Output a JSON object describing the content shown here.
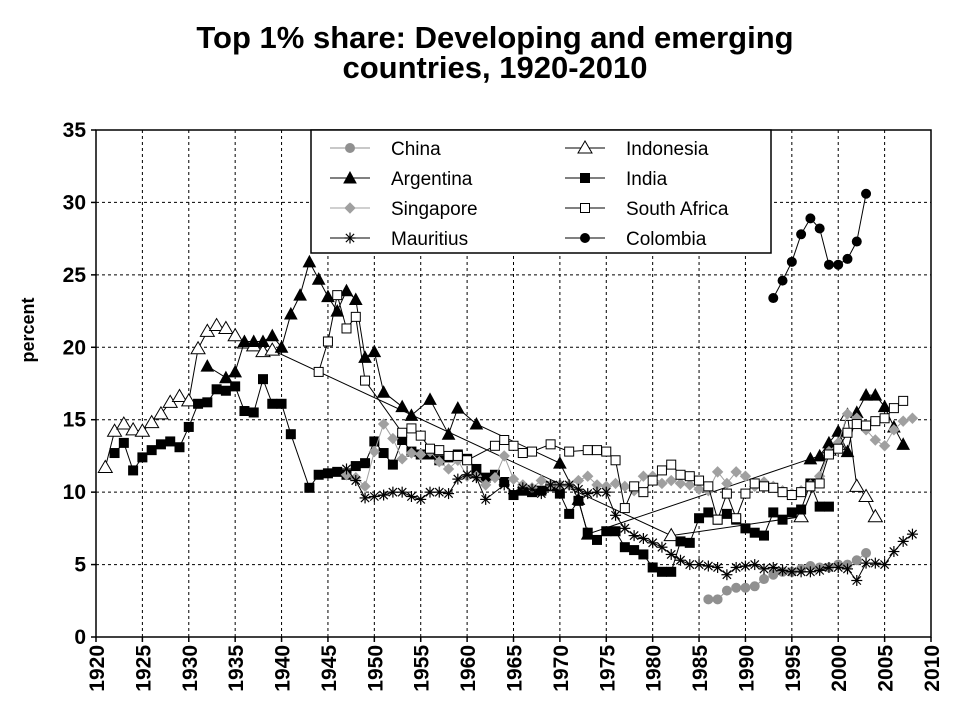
{
  "chart_data": {
    "type": "line",
    "title_lines": [
      "Top 1% share: Developing and emerging",
      "countries, 1920-2010"
    ],
    "xlabel": "",
    "ylabel": "percent",
    "xlim": [
      1920,
      2010
    ],
    "ylim": [
      0,
      35
    ],
    "x_ticks": [
      "1920",
      "1925",
      "1930",
      "1935",
      "1940",
      "1945",
      "1950",
      "1955",
      "1960",
      "1965",
      "1970",
      "1975",
      "1980",
      "1985",
      "1990",
      "1995",
      "2000",
      "2005",
      "2010"
    ],
    "y_ticks": [
      "0",
      "5",
      "10",
      "15",
      "20",
      "25",
      "30",
      "35"
    ],
    "grid": true,
    "legend_position": "top-center",
    "series": [
      {
        "name": "China",
        "marker": "circle",
        "color": "#909090",
        "line_color": "#909090",
        "x": [
          1986,
          1987,
          1988,
          1989,
          1990,
          1991,
          1992,
          1993,
          1994,
          1995,
          1996,
          1997,
          1998,
          1999,
          2000,
          2001,
          2002,
          2003
        ],
        "y": [
          2.6,
          2.6,
          3.2,
          3.4,
          3.4,
          3.5,
          4.0,
          4.3,
          4.5,
          4.5,
          4.7,
          4.9,
          4.8,
          4.8,
          5.0,
          5.0,
          5.3,
          5.8
        ]
      },
      {
        "name": "Indonesia",
        "marker": "triangle-open",
        "color": "#000000",
        "line_color": "#000000",
        "x": [
          1921,
          1922,
          1923,
          1924,
          1925,
          1926,
          1927,
          1928,
          1929,
          1930,
          1931,
          1932,
          1933,
          1934,
          1935,
          1936,
          1937,
          1938,
          1939,
          1982,
          1996,
          1999,
          2000,
          2001,
          2002,
          2003,
          2004
        ],
        "y": [
          11.7,
          14.2,
          14.7,
          14.3,
          14.2,
          14.8,
          15.4,
          16.2,
          16.6,
          16.3,
          19.9,
          21.1,
          21.5,
          21.3,
          20.8,
          20.3,
          20.1,
          19.7,
          19.8,
          7.0,
          8.3,
          12.9,
          13.3,
          15.3,
          10.4,
          9.7,
          8.3
        ]
      },
      {
        "name": "Argentina",
        "marker": "triangle",
        "color": "#000000",
        "line_color": "#000000",
        "x": [
          1932,
          1934,
          1935,
          1936,
          1937,
          1938,
          1939,
          1940,
          1941,
          1942,
          1943,
          1944,
          1945,
          1946,
          1947,
          1948,
          1949,
          1950,
          1951,
          1953,
          1954,
          1956,
          1958,
          1959,
          1961,
          1970,
          1972,
          1973,
          1997,
          1998,
          1999,
          2000,
          2001,
          2002,
          2003,
          2004,
          2005,
          2006,
          2007
        ],
        "y": [
          18.7,
          17.9,
          18.3,
          20.4,
          20.4,
          20.4,
          20.8,
          20.0,
          22.3,
          23.6,
          25.9,
          24.7,
          23.5,
          22.5,
          23.9,
          23.3,
          19.3,
          19.7,
          16.9,
          15.9,
          15.3,
          16.4,
          14.0,
          15.8,
          14.7,
          12.0,
          9.5,
          7.1,
          12.3,
          12.5,
          13.4,
          14.2,
          12.8,
          15.5,
          16.7,
          16.7,
          15.9,
          14.5,
          13.3
        ]
      },
      {
        "name": "India",
        "marker": "square",
        "color": "#000000",
        "line_color": "#000000",
        "x": [
          1922,
          1923,
          1924,
          1925,
          1926,
          1927,
          1928,
          1929,
          1930,
          1931,
          1932,
          1933,
          1934,
          1935,
          1936,
          1937,
          1938,
          1939,
          1940,
          1941,
          1943,
          1944,
          1945,
          1946,
          1947,
          1948,
          1949,
          1950,
          1951,
          1952,
          1953,
          1954,
          1955,
          1956,
          1957,
          1958,
          1959,
          1960,
          1961,
          1962,
          1963,
          1964,
          1965,
          1966,
          1967,
          1968,
          1969,
          1970,
          1971,
          1972,
          1973,
          1974,
          1975,
          1976,
          1977,
          1978,
          1979,
          1980,
          1981,
          1982,
          1983,
          1984,
          1985,
          1986,
          1987,
          1988,
          1989,
          1990,
          1991,
          1992,
          1993,
          1994,
          1995,
          1996,
          1997,
          1998,
          1999
        ],
        "y": [
          12.7,
          13.4,
          11.5,
          12.4,
          12.9,
          13.3,
          13.5,
          13.1,
          14.5,
          16.1,
          16.2,
          17.1,
          17.0,
          17.3,
          15.6,
          15.5,
          17.8,
          16.1,
          16.1,
          14.0,
          10.3,
          11.2,
          11.3,
          11.4,
          11.2,
          11.8,
          12.0,
          13.5,
          12.7,
          11.9,
          13.6,
          12.8,
          12.6,
          12.6,
          12.2,
          12.4,
          12.6,
          12.3,
          11.6,
          11.0,
          11.2,
          10.7,
          9.8,
          10.1,
          10.0,
          10.1,
          10.4,
          9.9,
          8.5,
          9.4,
          7.2,
          6.7,
          7.3,
          7.3,
          6.2,
          6.0,
          5.7,
          4.8,
          4.5,
          4.5,
          6.6,
          6.5,
          8.2,
          8.6,
          8.1,
          8.5,
          8.1,
          7.5,
          7.2,
          7.0,
          8.6,
          8.1,
          8.6,
          8.8,
          10.6,
          9.0,
          9.0
        ]
      },
      {
        "name": "Singapore",
        "marker": "diamond",
        "color": "#a0a0a0",
        "line_color": "#a0a0a0",
        "x": [
          1947,
          1948,
          1949,
          1950,
          1951,
          1952,
          1953,
          1954,
          1955,
          1956,
          1957,
          1958,
          1959,
          1960,
          1961,
          1962,
          1963,
          1964,
          1965,
          1966,
          1967,
          1968,
          1969,
          1970,
          1971,
          1972,
          1973,
          1974,
          1975,
          1976,
          1977,
          1978,
          1979,
          1980,
          1981,
          1982,
          1983,
          1984,
          1985,
          1986,
          1987,
          1988,
          1989,
          1990,
          1991,
          1992,
          1993,
          1994,
          1995,
          1996,
          1997,
          1998,
          1999,
          2000,
          2001,
          2002,
          2003,
          2004,
          2005,
          2006,
          2007,
          2008
        ],
        "y": [
          11.2,
          11.0,
          10.4,
          12.8,
          14.7,
          13.7,
          12.3,
          12.7,
          12.6,
          12.8,
          12.1,
          11.6,
          12.2,
          11.1,
          11.1,
          10.5,
          11.0,
          12.5,
          10.9,
          10.5,
          10.3,
          10.8,
          10.5,
          10.5,
          10.5,
          10.8,
          11.1,
          10.5,
          10.4,
          10.6,
          10.4,
          10.1,
          11.1,
          11.1,
          10.6,
          10.8,
          10.6,
          10.5,
          10.2,
          10.1,
          11.4,
          10.6,
          11.4,
          11.1,
          10.4,
          10.7,
          10.4,
          10.1,
          9.9,
          10.1,
          10.5,
          11.1,
          12.8,
          13.4,
          15.4,
          15.1,
          14.3,
          13.6,
          13.2,
          14.3,
          14.9,
          15.1
        ]
      },
      {
        "name": "South Africa",
        "marker": "square-open",
        "color": "#000000",
        "line_color": "#000000",
        "x": [
          1944,
          1945,
          1946,
          1947,
          1948,
          1949,
          1953,
          1954,
          1955,
          1956,
          1957,
          1958,
          1959,
          1960,
          1963,
          1964,
          1965,
          1966,
          1967,
          1969,
          1971,
          1973,
          1974,
          1975,
          1976,
          1977,
          1978,
          1979,
          1980,
          1981,
          1982,
          1983,
          1984,
          1985,
          1986,
          1987,
          1988,
          1989,
          1990,
          1991,
          1992,
          1993,
          1994,
          1995,
          1996,
          1997,
          1998,
          1999,
          2000,
          2001,
          2002,
          2003,
          2004,
          2005,
          2006,
          2007
        ],
        "y": [
          18.3,
          20.4,
          23.6,
          21.3,
          22.1,
          17.7,
          14.1,
          14.4,
          13.9,
          13.0,
          12.9,
          12.5,
          12.5,
          12.2,
          13.2,
          13.6,
          13.2,
          12.7,
          12.8,
          13.3,
          12.8,
          12.9,
          12.9,
          12.8,
          12.2,
          8.9,
          10.4,
          10.0,
          10.8,
          11.5,
          11.9,
          11.2,
          11.1,
          10.8,
          10.4,
          8.1,
          9.9,
          8.2,
          9.9,
          10.6,
          10.4,
          10.3,
          10.0,
          9.8,
          10.0,
          10.4,
          10.6,
          12.6,
          13.0,
          14.1,
          14.7,
          14.6,
          14.9,
          15.1,
          15.8,
          16.3
        ]
      },
      {
        "name": "Mauritius",
        "marker": "star",
        "color": "#000000",
        "line_color": "#000000",
        "x": [
          1947,
          1948,
          1949,
          1950,
          1951,
          1952,
          1953,
          1954,
          1955,
          1956,
          1957,
          1958,
          1959,
          1960,
          1961,
          1962,
          1964,
          1965,
          1966,
          1967,
          1968,
          1969,
          1970,
          1971,
          1972,
          1973,
          1974,
          1975,
          1976,
          1977,
          1978,
          1979,
          1980,
          1981,
          1982,
          1983,
          1984,
          1985,
          1986,
          1987,
          1988,
          1989,
          1990,
          1991,
          1992,
          1993,
          1994,
          1995,
          1996,
          1997,
          1998,
          1999,
          2000,
          2001,
          2002,
          2003,
          2004,
          2005,
          2006,
          2007,
          2008
        ],
        "y": [
          11.6,
          10.8,
          9.6,
          9.7,
          9.8,
          10.0,
          10.0,
          9.7,
          9.5,
          10.0,
          10.0,
          9.9,
          10.9,
          11.2,
          11.0,
          9.5,
          10.5,
          9.9,
          10.3,
          10.2,
          9.9,
          10.5,
          10.5,
          10.5,
          10.2,
          9.9,
          10.0,
          10.0,
          8.4,
          7.5,
          7.0,
          6.8,
          6.5,
          6.2,
          5.7,
          5.3,
          5.0,
          5.0,
          4.9,
          4.8,
          4.3,
          4.8,
          4.9,
          5.0,
          4.7,
          4.8,
          4.6,
          4.5,
          4.5,
          4.5,
          4.6,
          4.8,
          4.8,
          4.7,
          3.9,
          5.1,
          5.1,
          5.0,
          5.9,
          6.6,
          7.1
        ]
      },
      {
        "name": "Colombia",
        "marker": "circle-black",
        "color": "#000000",
        "line_color": "#000000",
        "x": [
          1993,
          1994,
          1995,
          1996,
          1997,
          1998,
          1999,
          2000,
          2001,
          2002,
          2003
        ],
        "y": [
          23.4,
          24.6,
          25.9,
          27.8,
          28.9,
          28.2,
          25.7,
          25.7,
          26.1,
          27.3,
          30.6
        ]
      }
    ]
  }
}
